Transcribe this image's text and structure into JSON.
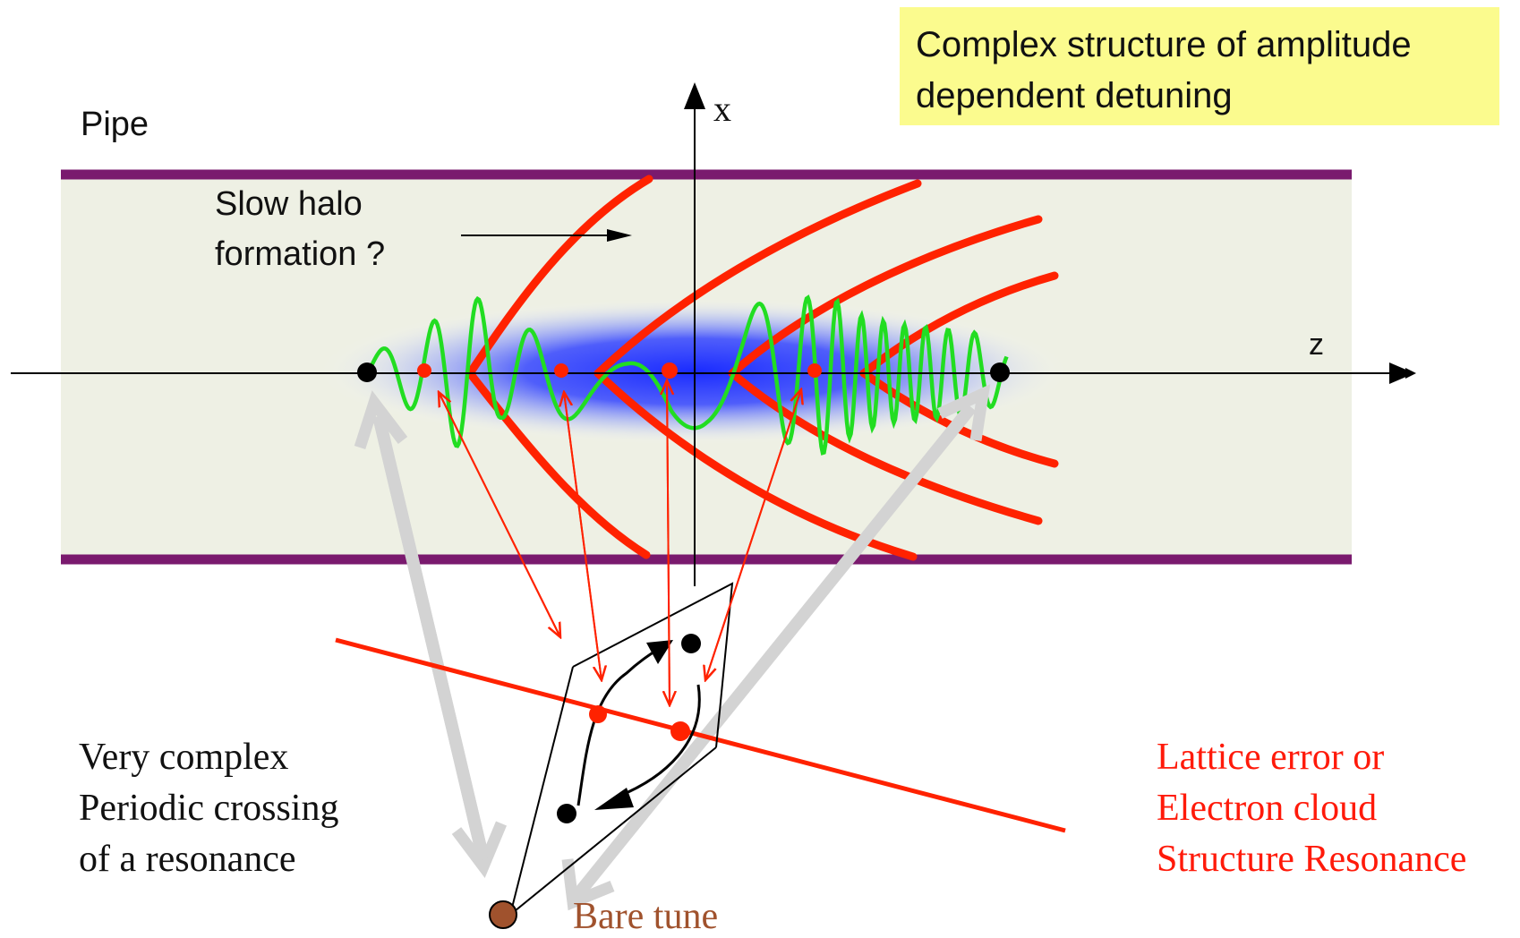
{
  "note": {
    "lines": [
      "Complex structure of amplitude",
      "dependent detuning"
    ]
  },
  "pipe": {
    "label": "Pipe"
  },
  "halo": {
    "lines": [
      "Slow halo",
      "formation ?"
    ]
  },
  "axes": {
    "x_label": "x",
    "z_label": "z"
  },
  "left_caption": {
    "lines": [
      "Very complex",
      "Periodic crossing",
      "of a resonance"
    ]
  },
  "right_caption": {
    "lines": [
      "Lattice error or",
      "Electron cloud",
      "Structure Resonance"
    ]
  },
  "bare_tune": {
    "label": "Bare tune"
  },
  "colors": {
    "pipe_fill": "#eef0e4",
    "pipe_wall": "#7a1a6e",
    "resonance_red": "#ff2200",
    "wave_green": "#22dd22",
    "beam_blue": "#1a2bff",
    "note_yellow": "#fbfb8e",
    "bare_tune_brown": "#a0522d",
    "gray_arrow": "#d3d3d3"
  }
}
